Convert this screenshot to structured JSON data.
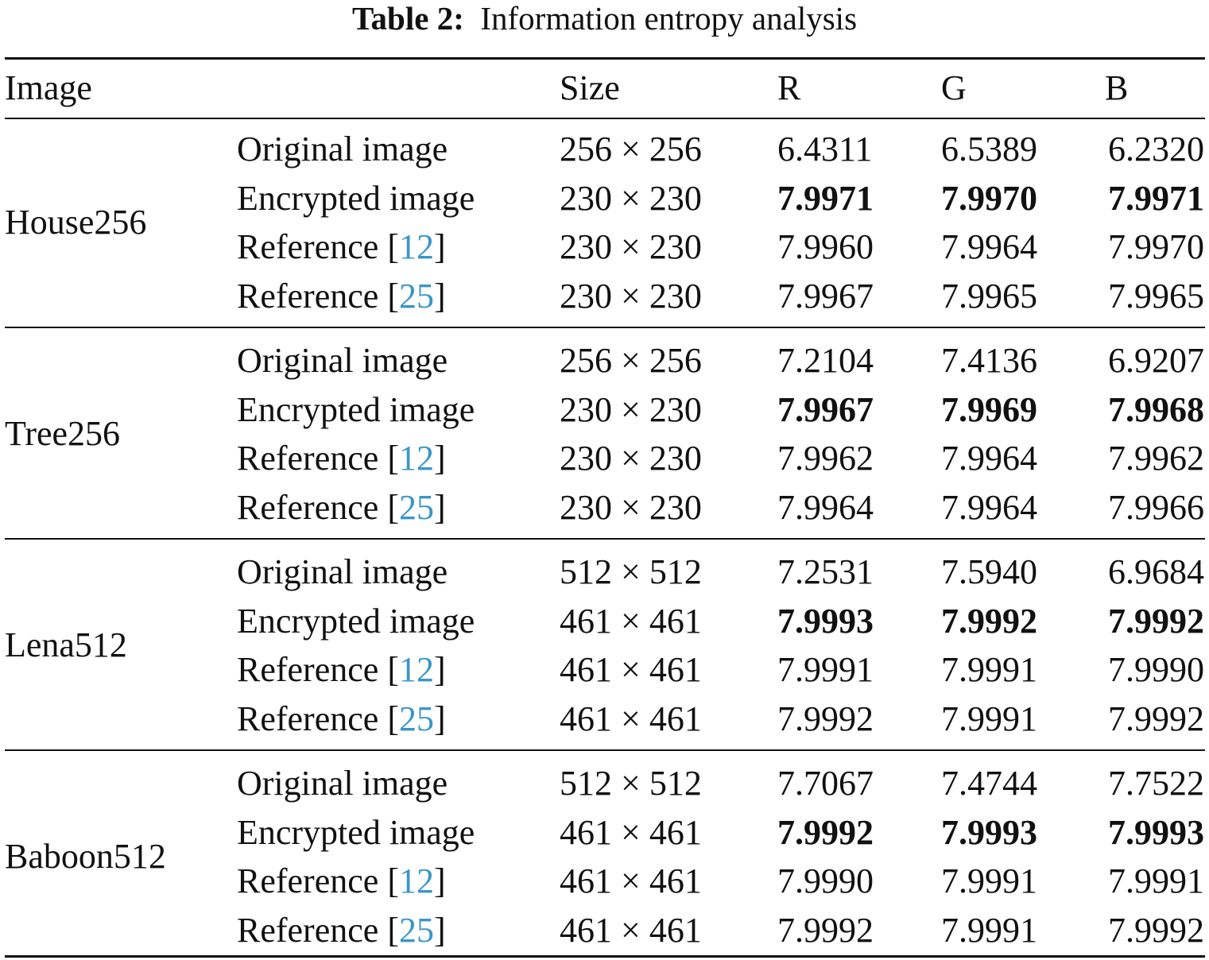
{
  "caption": {
    "label": "Table 2:",
    "text": "Information entropy analysis"
  },
  "headers": [
    "Image",
    "",
    "Size",
    "R",
    "G",
    "B"
  ],
  "groups": [
    {
      "image": "House256",
      "rows": [
        {
          "label": "Original image",
          "ref": "",
          "size": "256 × 256",
          "r": "6.4311",
          "g": "6.5389",
          "b": "6.2320",
          "bold": false
        },
        {
          "label": "Encrypted image",
          "ref": "",
          "size": "230 × 230",
          "r": "7.9971",
          "g": "7.9970",
          "b": "7.9971",
          "bold": true
        },
        {
          "label": "Reference",
          "ref": "12",
          "size": "230 × 230",
          "r": "7.9960",
          "g": "7.9964",
          "b": "7.9970",
          "bold": false
        },
        {
          "label": "Reference",
          "ref": "25",
          "size": "230 × 230",
          "r": "7.9967",
          "g": "7.9965",
          "b": "7.9965",
          "bold": false
        }
      ]
    },
    {
      "image": "Tree256",
      "rows": [
        {
          "label": "Original image",
          "ref": "",
          "size": "256 × 256",
          "r": "7.2104",
          "g": "7.4136",
          "b": "6.9207",
          "bold": false
        },
        {
          "label": "Encrypted image",
          "ref": "",
          "size": "230 × 230",
          "r": "7.9967",
          "g": "7.9969",
          "b": "7.9968",
          "bold": true
        },
        {
          "label": "Reference",
          "ref": "12",
          "size": "230 × 230",
          "r": "7.9962",
          "g": "7.9964",
          "b": "7.9962",
          "bold": false
        },
        {
          "label": "Reference",
          "ref": "25",
          "size": "230 × 230",
          "r": "7.9964",
          "g": "7.9964",
          "b": "7.9966",
          "bold": false
        }
      ]
    },
    {
      "image": "Lena512",
      "rows": [
        {
          "label": "Original image",
          "ref": "",
          "size": "512 × 512",
          "r": "7.2531",
          "g": "7.5940",
          "b": "6.9684",
          "bold": false
        },
        {
          "label": "Encrypted image",
          "ref": "",
          "size": "461 × 461",
          "r": "7.9993",
          "g": "7.9992",
          "b": "7.9992",
          "bold": true
        },
        {
          "label": "Reference",
          "ref": "12",
          "size": "461 × 461",
          "r": "7.9991",
          "g": "7.9991",
          "b": "7.9990",
          "bold": false
        },
        {
          "label": "Reference",
          "ref": "25",
          "size": "461 × 461",
          "r": "7.9992",
          "g": "7.9991",
          "b": "7.9992",
          "bold": false
        }
      ]
    },
    {
      "image": "Baboon512",
      "rows": [
        {
          "label": "Original image",
          "ref": "",
          "size": "512 × 512",
          "r": "7.7067",
          "g": "7.4744",
          "b": "7.7522",
          "bold": false
        },
        {
          "label": "Encrypted image",
          "ref": "",
          "size": "461 × 461",
          "r": "7.9992",
          "g": "7.9993",
          "b": "7.9993",
          "bold": true
        },
        {
          "label": "Reference",
          "ref": "12",
          "size": "461 × 461",
          "r": "7.9990",
          "g": "7.9991",
          "b": "7.9991",
          "bold": false
        },
        {
          "label": "Reference",
          "ref": "25",
          "size": "461 × 461",
          "r": "7.9992",
          "g": "7.9991",
          "b": "7.9992",
          "bold": false
        }
      ]
    }
  ],
  "colors": {
    "text": "#111111",
    "citation_link": "#3a96c8"
  }
}
